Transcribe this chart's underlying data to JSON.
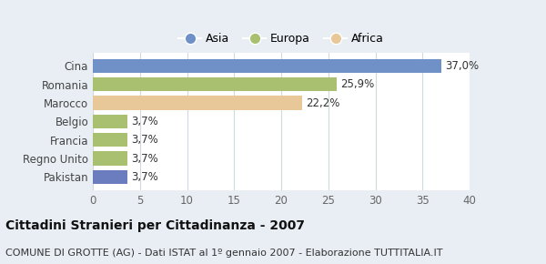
{
  "categories": [
    "Pakistan",
    "Regno Unito",
    "Francia",
    "Belgio",
    "Marocco",
    "Romania",
    "Cina"
  ],
  "values": [
    3.7,
    3.7,
    3.7,
    3.7,
    22.2,
    25.9,
    37.0
  ],
  "colors": [
    "#6b7dbf",
    "#a8c070",
    "#a8c070",
    "#a8c070",
    "#e8c898",
    "#a8c070",
    "#7090c8"
  ],
  "labels": [
    "3,7%",
    "3,7%",
    "3,7%",
    "3,7%",
    "22,2%",
    "25,9%",
    "37,0%"
  ],
  "legend": [
    {
      "label": "Asia",
      "color": "#7090c8"
    },
    {
      "label": "Europa",
      "color": "#a8c070"
    },
    {
      "label": "Africa",
      "color": "#e8c898"
    }
  ],
  "xlim": [
    0,
    40
  ],
  "xticks": [
    0,
    5,
    10,
    15,
    20,
    25,
    30,
    35,
    40
  ],
  "title": "Cittadini Stranieri per Cittadinanza - 2007",
  "subtitle": "COMUNE DI GROTTE (AG) - Dati ISTAT al 1º gennaio 2007 - Elaborazione TUTTITALIA.IT",
  "title_fontsize": 10,
  "subtitle_fontsize": 8,
  "label_fontsize": 8.5,
  "tick_fontsize": 8.5,
  "bar_height": 0.75,
  "background_color": "#e8eef4",
  "plot_bg_color": "#ffffff",
  "grid_color": "#d0d8e0"
}
